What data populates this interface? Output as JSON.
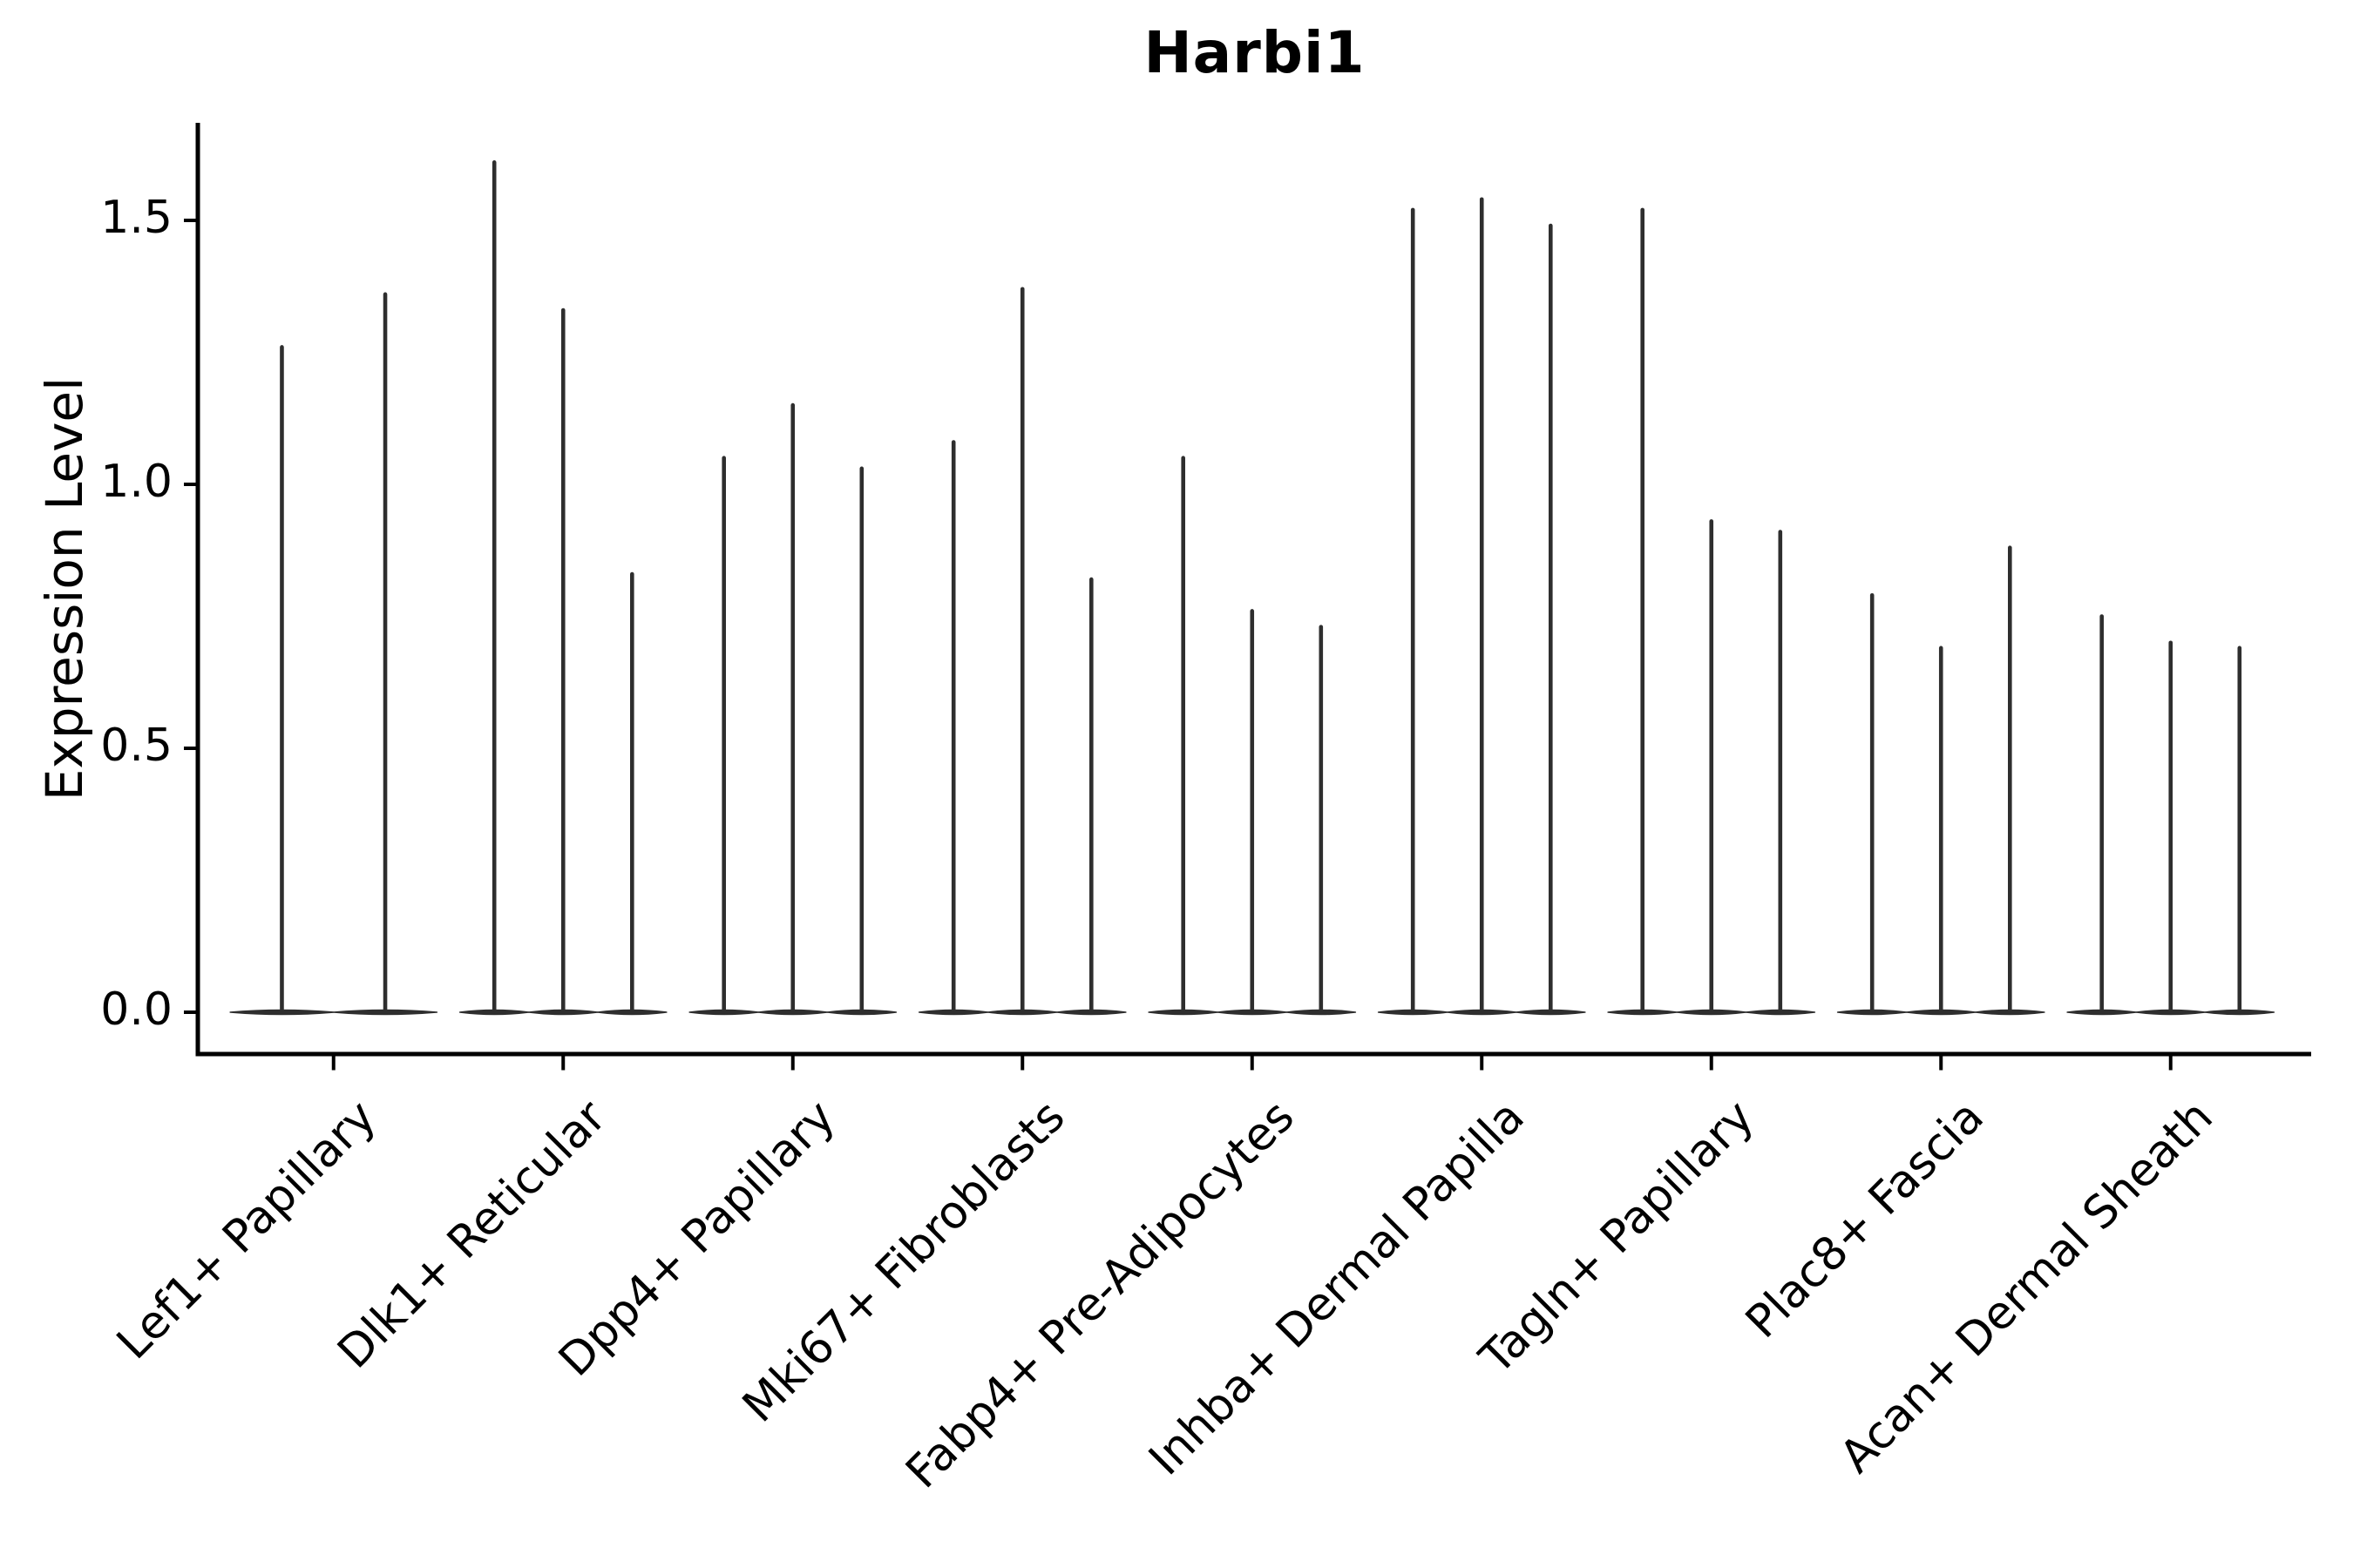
{
  "figure": {
    "background": "#ffffff",
    "ink_color": "#2e2e2e",
    "axis_color": "#000000"
  },
  "chart_data": {
    "type": "violin",
    "title": "Harbi1",
    "xlabel": "",
    "ylabel": "Expression Level",
    "ylim": [
      -0.08,
      1.7
    ],
    "grid": false,
    "legend": "none",
    "violin_style": "zero-inflated: wide flat density body at 0 with a thin vertical density spike reaching the maximum expression value",
    "yticks": [
      {
        "value": 0.0,
        "label": "0.0"
      },
      {
        "value": 0.5,
        "label": "0.5"
      },
      {
        "value": 1.0,
        "label": "1.0"
      },
      {
        "value": 1.5,
        "label": "1.5"
      }
    ],
    "categories": [
      "Lef1+ Papillary",
      "Dlk1+ Reticular",
      "Dpp4+ Papillary",
      "Mki67+ Fibroblasts",
      "Fabp4+ Pre-Adipocytes",
      "Inhba+ Dermal Papilla",
      "Tagln+ Papillary",
      "Plac8+ Fascia",
      "Acan+ Dermal Sheath"
    ],
    "groups": [
      {
        "label": "Lef1+ Papillary",
        "violin_max_values": [
          1.26,
          1.36
        ]
      },
      {
        "label": "Dlk1+ Reticular",
        "violin_max_values": [
          1.61,
          1.33,
          0.83
        ]
      },
      {
        "label": "Dpp4+ Papillary",
        "violin_max_values": [
          1.05,
          1.15,
          1.03
        ]
      },
      {
        "label": "Mki67+ Fibroblasts",
        "violin_max_values": [
          1.08,
          1.37,
          0.82
        ]
      },
      {
        "label": "Fabp4+ Pre-Adipocytes",
        "violin_max_values": [
          1.05,
          0.76,
          0.73
        ]
      },
      {
        "label": "Inhba+ Dermal Papilla",
        "violin_max_values": [
          1.52,
          1.54,
          1.49
        ]
      },
      {
        "label": "Tagln+ Papillary",
        "violin_max_values": [
          1.52,
          0.93,
          0.91
        ]
      },
      {
        "label": "Plac8+ Fascia",
        "violin_max_values": [
          0.79,
          0.69,
          0.88
        ]
      },
      {
        "label": "Acan+ Dermal Sheath",
        "violin_max_values": [
          0.75,
          0.7,
          0.69
        ]
      }
    ]
  }
}
